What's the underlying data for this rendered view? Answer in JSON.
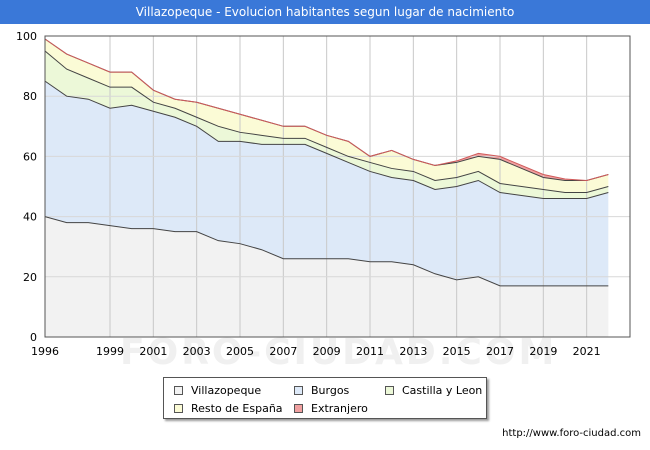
{
  "header": {
    "title": "Villazopeque - Evolucion habitantes segun lugar de nacimiento"
  },
  "watermark": "FORO-CIUDAD.COM",
  "source_url": "http://www.foro-ciudad.com",
  "chart_data": {
    "type": "area",
    "stacked": true,
    "x": [
      1996,
      1997,
      1998,
      1999,
      2000,
      2001,
      2002,
      2003,
      2004,
      2005,
      2006,
      2007,
      2008,
      2009,
      2010,
      2011,
      2012,
      2013,
      2014,
      2015,
      2016,
      2017,
      2018,
      2019,
      2020,
      2021,
      2022
    ],
    "xticks": [
      1996,
      1999,
      2001,
      2003,
      2005,
      2007,
      2009,
      2011,
      2013,
      2015,
      2017,
      2019,
      2021
    ],
    "yticks": [
      0,
      20,
      40,
      60,
      80,
      100
    ],
    "ylim": [
      0,
      100
    ],
    "xlim": [
      1996,
      2023
    ],
    "grid": true,
    "legend_position": "bottom",
    "series": [
      {
        "name": "Villazopeque",
        "color": "#f2f2f2",
        "values": [
          40,
          38,
          38,
          37,
          36,
          36,
          35,
          35,
          32,
          31,
          29,
          26,
          26,
          26,
          26,
          25,
          25,
          24,
          21,
          19,
          20,
          17,
          17,
          17,
          17,
          17,
          17
        ]
      },
      {
        "name": "Burgos",
        "color": "#dde9f8",
        "values": [
          45,
          42,
          41,
          39,
          41,
          39,
          38,
          35,
          33,
          34,
          35,
          38,
          38,
          35,
          32,
          30,
          28,
          28,
          28,
          31,
          32,
          31,
          30,
          29,
          29,
          29,
          31
        ]
      },
      {
        "name": "Castilla y Leon",
        "color": "#ecf8d8",
        "values": [
          10,
          9,
          7,
          7,
          6,
          3,
          3,
          3,
          5,
          3,
          3,
          2,
          2,
          2,
          2,
          3,
          3,
          3,
          3,
          3,
          3,
          3,
          3,
          3,
          2,
          2,
          2
        ]
      },
      {
        "name": "Resto de España",
        "color": "#fbfbd6",
        "values": [
          4,
          5,
          5,
          5,
          5,
          4,
          3,
          5,
          6,
          6,
          5,
          4,
          4,
          4,
          5,
          2,
          6,
          4,
          5,
          5,
          5,
          8,
          6,
          4,
          4,
          4,
          4
        ]
      },
      {
        "name": "Extranjero",
        "color": "#f0a0a0",
        "values": [
          0,
          0,
          0,
          0,
          0,
          0,
          0,
          0,
          0,
          0,
          0,
          0,
          0,
          0,
          0,
          0,
          0,
          0,
          0,
          0.5,
          1,
          1,
          1,
          1,
          0.5,
          0,
          0
        ]
      }
    ]
  }
}
